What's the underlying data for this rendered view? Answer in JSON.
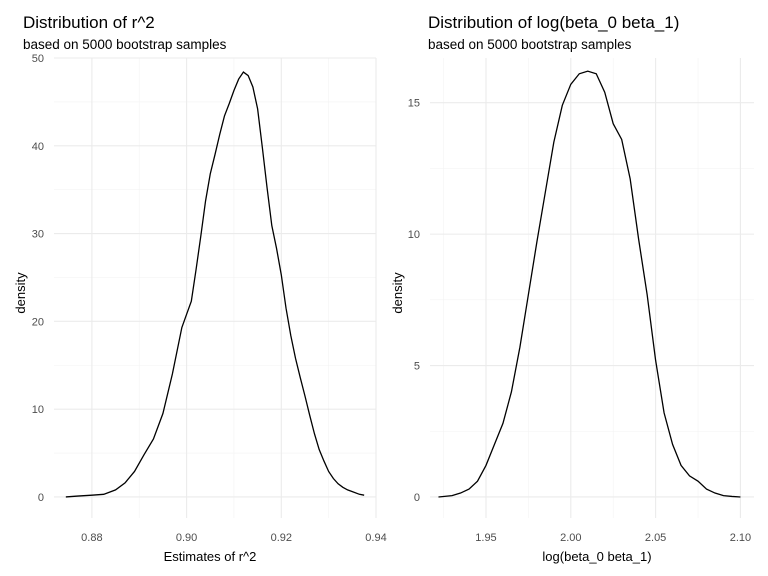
{
  "chart_data": [
    {
      "type": "line",
      "title": "Distribution of r^2",
      "subtitle": "based on 5000 bootstrap samples",
      "xlabel": "Estimates of r^2",
      "ylabel": "density",
      "xlim": [
        0.872,
        0.94
      ],
      "ylim": [
        -2.4,
        50
      ],
      "xticks": [
        0.88,
        0.9,
        0.92,
        0.94
      ],
      "xtick_labels": [
        "0.88",
        "0.90",
        "0.92",
        "0.94"
      ],
      "yticks": [
        0,
        10,
        20,
        30,
        40,
        50
      ],
      "ytick_labels": [
        "0",
        "10",
        "20",
        "30",
        "40",
        "50"
      ],
      "grid": true,
      "series": [
        {
          "x": [
            0.8745,
            0.877,
            0.88,
            0.8825,
            0.885,
            0.887,
            0.889,
            0.891,
            0.893,
            0.895,
            0.897,
            0.899,
            0.9,
            0.901,
            0.902,
            0.903,
            0.904,
            0.905,
            0.906,
            0.907,
            0.908,
            0.909,
            0.91,
            0.911,
            0.912,
            0.913,
            0.914,
            0.915,
            0.916,
            0.917,
            0.918,
            0.919,
            0.92,
            0.921,
            0.922,
            0.923,
            0.924,
            0.925,
            0.926,
            0.927,
            0.928,
            0.929,
            0.93,
            0.931,
            0.932,
            0.933,
            0.934,
            0.935,
            0.9365,
            0.9375
          ],
          "values": [
            0,
            0.1,
            0.2,
            0.3,
            0.8,
            1.6,
            2.9,
            4.8,
            6.6,
            9.5,
            14,
            19.3,
            20.8,
            22.3,
            25.9,
            29.7,
            33.7,
            36.8,
            39,
            41.3,
            43.4,
            44.8,
            46.3,
            47.6,
            48.4,
            48,
            46.7,
            44.2,
            39.8,
            35.2,
            30.9,
            28.3,
            25.3,
            21.5,
            18.4,
            15.8,
            13.6,
            11.5,
            9.3,
            7.2,
            5.4,
            4.1,
            2.9,
            2.1,
            1.5,
            1.1,
            0.8,
            0.6,
            0.3,
            0.2
          ]
        }
      ]
    },
    {
      "type": "line",
      "title": "Distribution of log(beta_0 beta_1)",
      "subtitle": "based on 5000 bootstrap samples",
      "xlabel": "log(beta_0 beta_1)",
      "ylabel": "density",
      "xlim": [
        1.917,
        2.108
      ],
      "ylim": [
        -0.8,
        16.7
      ],
      "xticks": [
        1.95,
        2.0,
        2.05,
        2.1
      ],
      "xtick_labels": [
        "1.95",
        "2.00",
        "2.05",
        "2.10"
      ],
      "yticks": [
        0,
        5,
        10,
        15
      ],
      "ytick_labels": [
        "0",
        "5",
        "10",
        "15"
      ],
      "grid": true,
      "series": [
        {
          "x": [
            1.922,
            1.93,
            1.935,
            1.94,
            1.945,
            1.95,
            1.955,
            1.96,
            1.965,
            1.97,
            1.975,
            1.98,
            1.985,
            1.99,
            1.995,
            2.0,
            2.005,
            2.01,
            2.015,
            2.02,
            2.025,
            2.03,
            2.035,
            2.04,
            2.045,
            2.05,
            2.055,
            2.06,
            2.065,
            2.07,
            2.075,
            2.08,
            2.085,
            2.09,
            2.095,
            2.1
          ],
          "values": [
            0,
            0.05,
            0.15,
            0.3,
            0.6,
            1.2,
            2.0,
            2.8,
            4.0,
            5.7,
            7.7,
            9.7,
            11.6,
            13.5,
            14.9,
            15.7,
            16.1,
            16.2,
            16.1,
            15.4,
            14.2,
            13.6,
            12.1,
            9.8,
            7.7,
            5.2,
            3.2,
            2.0,
            1.2,
            0.8,
            0.6,
            0.3,
            0.15,
            0.05,
            0.02,
            0
          ]
        }
      ]
    }
  ]
}
